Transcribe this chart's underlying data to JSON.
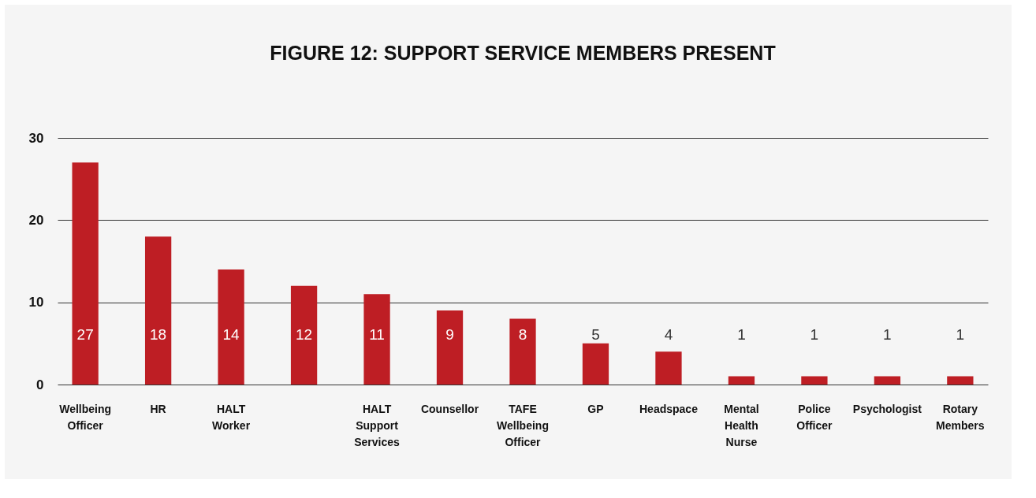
{
  "chart_data": {
    "type": "bar",
    "title": "FIGURE 12: SUPPORT SERVICE MEMBERS PRESENT",
    "categories": [
      "Wellbeing Officer",
      "HR",
      "HALT Worker",
      null,
      "HALT Support Services",
      "Counsellor",
      "TAFE Wellbeing Officer",
      "GP",
      "Headspace",
      "Mental Health Nurse",
      "Police Officer",
      "Psychologist",
      "Rotary Members"
    ],
    "values": [
      27,
      18,
      14,
      12,
      11,
      9,
      8,
      5,
      4,
      1,
      1,
      1,
      1
    ],
    "color": "#be1e24",
    "ylim": [
      0,
      30
    ],
    "yticks": [
      0,
      10,
      20,
      30
    ],
    "grid": "y",
    "data_labels": true
  }
}
